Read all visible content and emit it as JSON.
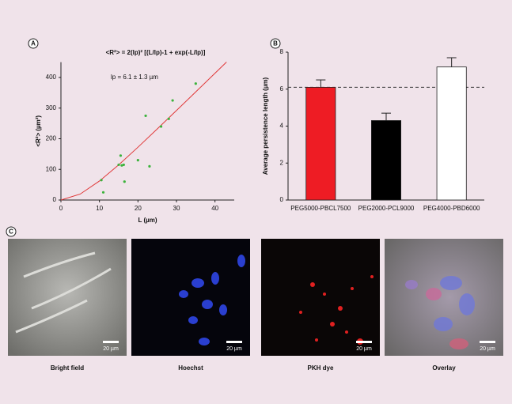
{
  "panels": {
    "labels": [
      "A",
      "B",
      "C"
    ]
  },
  "chart_data": [
    {
      "type": "scatter",
      "title": "<R²> = 2(lp)² [(L/lp)-1 + exp(-L/lp)]",
      "annotation": "lp = 6.1 ± 1.3 µm",
      "xlabel": "L (µm)",
      "ylabel": "<R²> (µm²)",
      "x": [
        10.5,
        11,
        15,
        15.5,
        15.8,
        16.3,
        16.5,
        20,
        22,
        23,
        26,
        28,
        29,
        35
      ],
      "values": [
        65,
        25,
        115,
        145,
        113,
        115,
        60,
        130,
        275,
        110,
        240,
        265,
        325,
        380
      ],
      "color": "#3cb33c",
      "fit": {
        "x": [
          0,
          5,
          10,
          15,
          20,
          25,
          30,
          35,
          40,
          43
        ],
        "values": [
          0,
          19.4,
          62,
          114.9,
          172.4,
          231.8,
          292.1,
          352.8,
          413.7,
          450.3
        ],
        "color": "#e03838"
      },
      "xlim": [
        0,
        45
      ],
      "ylim": [
        0,
        450
      ],
      "xticks": [
        0,
        10,
        20,
        30,
        40
      ],
      "yticks": [
        0,
        100,
        200,
        300,
        400
      ]
    },
    {
      "type": "bar",
      "ylabel": "Average persistence length (µm)",
      "categories": [
        "PEG5000-PBCL7500",
        "PEG2000-PCL9000",
        "PEG4000-PBD6000"
      ],
      "values": [
        6.1,
        4.3,
        7.2
      ],
      "errors": [
        0.4,
        0.4,
        0.5
      ],
      "colors": [
        "#ee1c24",
        "#000000",
        "#ffffff"
      ],
      "reference_line": 6.1,
      "ylim": [
        0,
        8
      ],
      "yticks": [
        0,
        2,
        4,
        6,
        8
      ]
    }
  ],
  "images": {
    "captions": [
      "Bright field",
      "Hoechst",
      "PKH dye",
      "Overlay"
    ],
    "scale_bar": "20 µm"
  }
}
